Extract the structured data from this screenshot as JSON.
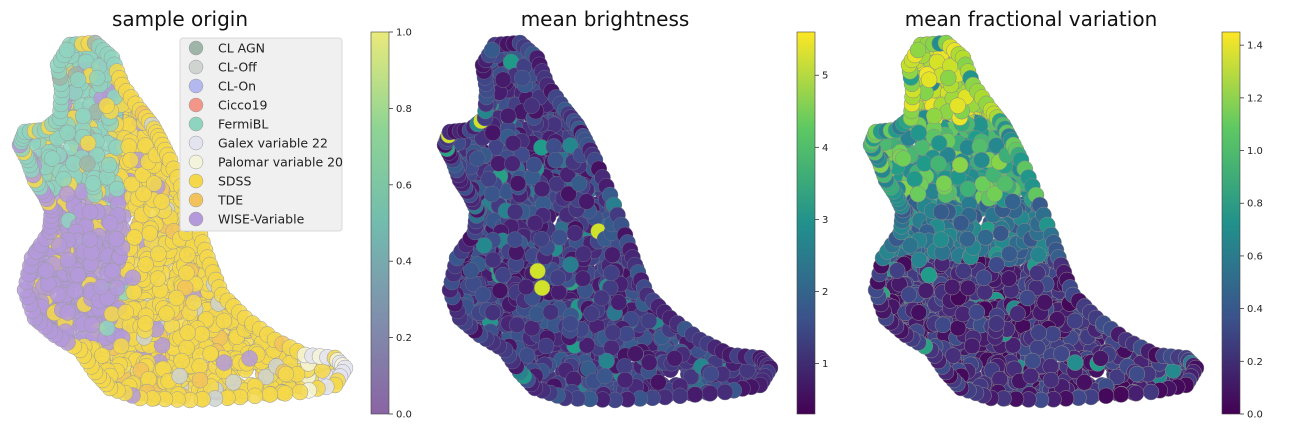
{
  "chart_data": [
    {
      "type": "scatter",
      "title": "sample origin",
      "legend": {
        "placement": "top-right",
        "entries": [
          {
            "label": "CL AGN",
            "color": "#9fb5a8"
          },
          {
            "label": "CL-Off",
            "color": "#cfd4d0"
          },
          {
            "label": "CL-On",
            "color": "#b3b8ef"
          },
          {
            "label": "Cicco19",
            "color": "#f2968a"
          },
          {
            "label": "FermiBL",
            "color": "#8fd4bf"
          },
          {
            "label": "Galex variable 22",
            "color": "#e4e4f0"
          },
          {
            "label": "Palomar variable 20",
            "color": "#f4f4dc"
          },
          {
            "label": "SDSS",
            "color": "#f5d84a"
          },
          {
            "label": "TDE",
            "color": "#f2c35b"
          },
          {
            "label": "WISE-Variable",
            "color": "#b49ada"
          }
        ]
      },
      "colorbar": {
        "range": [
          0.0,
          1.0
        ],
        "ticks": [
          "0.0",
          "0.2",
          "0.4",
          "0.6",
          "0.8",
          "1.0"
        ],
        "colors": [
          "#8a64a4",
          "#7f8fac",
          "#72bcae",
          "#8fd494",
          "#eaea7a"
        ]
      },
      "grid": false,
      "axes_visible": false
    },
    {
      "type": "scatter",
      "title": "mean brightness",
      "colorbar": {
        "range": [
          0.3,
          5.6
        ],
        "ticks": [
          "1",
          "2",
          "3",
          "4",
          "5"
        ],
        "colors": [
          "#440154",
          "#3b528b",
          "#21918c",
          "#5ec962",
          "#fde725"
        ]
      },
      "grid": false,
      "axes_visible": false
    },
    {
      "type": "scatter",
      "title": "mean fractional variation",
      "colorbar": {
        "range": [
          0.0,
          1.45
        ],
        "ticks": [
          "0.0",
          "0.2",
          "0.4",
          "0.6",
          "0.8",
          "1.0",
          "1.2",
          "1.4"
        ],
        "colors": [
          "#440154",
          "#3b528b",
          "#21918c",
          "#5ec962",
          "#fde725"
        ]
      },
      "grid": false,
      "axes_visible": false
    }
  ]
}
